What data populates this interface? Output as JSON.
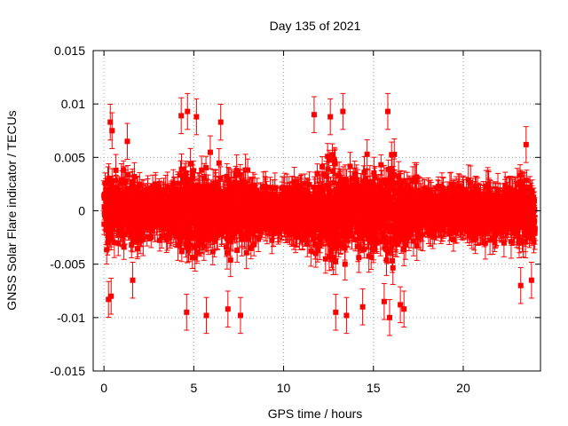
{
  "chart_data": {
    "type": "scatter",
    "title": "Day 135 of 2021",
    "xlabel": "GPS time / hours",
    "ylabel": "GNSS Solar Flare indicator / TECUs",
    "xlim": [
      -0.6,
      24.3
    ],
    "ylim": [
      -0.015,
      0.015
    ],
    "x_ticks": [
      0,
      5,
      10,
      15,
      20
    ],
    "x_tick_labels": [
      "0",
      "5",
      "10",
      "15",
      "20"
    ],
    "y_ticks": [
      -0.015,
      -0.01,
      -0.005,
      0,
      0.005,
      0.01,
      0.015
    ],
    "y_tick_labels": [
      "-0.015",
      "-0.01",
      "-0.005",
      "0",
      "0.005",
      "0.01",
      "0.015"
    ],
    "grid": true,
    "legend": "none",
    "colors": {
      "series": "#ff0000",
      "grid": "#a0a0a0"
    },
    "series": [
      {
        "marker": "square",
        "error_bars": true,
        "typical_error": 0.0012,
        "x_range": [
          0,
          24
        ],
        "sample_interval": 0.0083,
        "activity_envelope": [
          {
            "x": 0,
            "spread": 0.0035
          },
          {
            "x": 1,
            "spread": 0.0036
          },
          {
            "x": 2,
            "spread": 0.0032
          },
          {
            "x": 3,
            "spread": 0.0022
          },
          {
            "x": 4,
            "spread": 0.0035
          },
          {
            "x": 5,
            "spread": 0.0055
          },
          {
            "x": 6,
            "spread": 0.0042
          },
          {
            "x": 7,
            "spread": 0.004
          },
          {
            "x": 8,
            "spread": 0.0035
          },
          {
            "x": 9,
            "spread": 0.0025
          },
          {
            "x": 10,
            "spread": 0.0025
          },
          {
            "x": 11,
            "spread": 0.0035
          },
          {
            "x": 12,
            "spread": 0.0045
          },
          {
            "x": 13,
            "spread": 0.0055
          },
          {
            "x": 14,
            "spread": 0.005
          },
          {
            "x": 15,
            "spread": 0.0048
          },
          {
            "x": 16,
            "spread": 0.0055
          },
          {
            "x": 17,
            "spread": 0.0035
          },
          {
            "x": 18,
            "spread": 0.0026
          },
          {
            "x": 19,
            "spread": 0.0025
          },
          {
            "x": 20,
            "spread": 0.0026
          },
          {
            "x": 21,
            "spread": 0.0028
          },
          {
            "x": 22,
            "spread": 0.0028
          },
          {
            "x": 23,
            "spread": 0.0035
          },
          {
            "x": 24,
            "spread": 0.0038
          }
        ],
        "extreme_points": [
          {
            "x": 0.35,
            "y": 0.0083
          },
          {
            "x": 0.45,
            "y": 0.0075
          },
          {
            "x": 0.25,
            "y": -0.0083
          },
          {
            "x": 0.4,
            "y": -0.008
          },
          {
            "x": 1.3,
            "y": 0.0065
          },
          {
            "x": 1.6,
            "y": -0.0065
          },
          {
            "x": 4.3,
            "y": 0.0089
          },
          {
            "x": 4.65,
            "y": 0.0093
          },
          {
            "x": 5.15,
            "y": 0.0088
          },
          {
            "x": 4.6,
            "y": -0.0095
          },
          {
            "x": 5.7,
            "y": -0.0098
          },
          {
            "x": 6.5,
            "y": 0.0083
          },
          {
            "x": 6.9,
            "y": -0.0092
          },
          {
            "x": 7.6,
            "y": -0.0098
          },
          {
            "x": 11.7,
            "y": 0.009
          },
          {
            "x": 12.6,
            "y": 0.0088
          },
          {
            "x": 12.9,
            "y": -0.0095
          },
          {
            "x": 13.3,
            "y": 0.0093
          },
          {
            "x": 13.5,
            "y": -0.0098
          },
          {
            "x": 14.4,
            "y": -0.009
          },
          {
            "x": 15.8,
            "y": 0.0093
          },
          {
            "x": 15.6,
            "y": -0.0085
          },
          {
            "x": 15.9,
            "y": -0.01
          },
          {
            "x": 16.7,
            "y": -0.0092
          },
          {
            "x": 16.5,
            "y": -0.0088
          },
          {
            "x": 23.2,
            "y": -0.007
          },
          {
            "x": 23.8,
            "y": -0.0065
          },
          {
            "x": 23.5,
            "y": 0.0062
          }
        ]
      }
    ]
  }
}
